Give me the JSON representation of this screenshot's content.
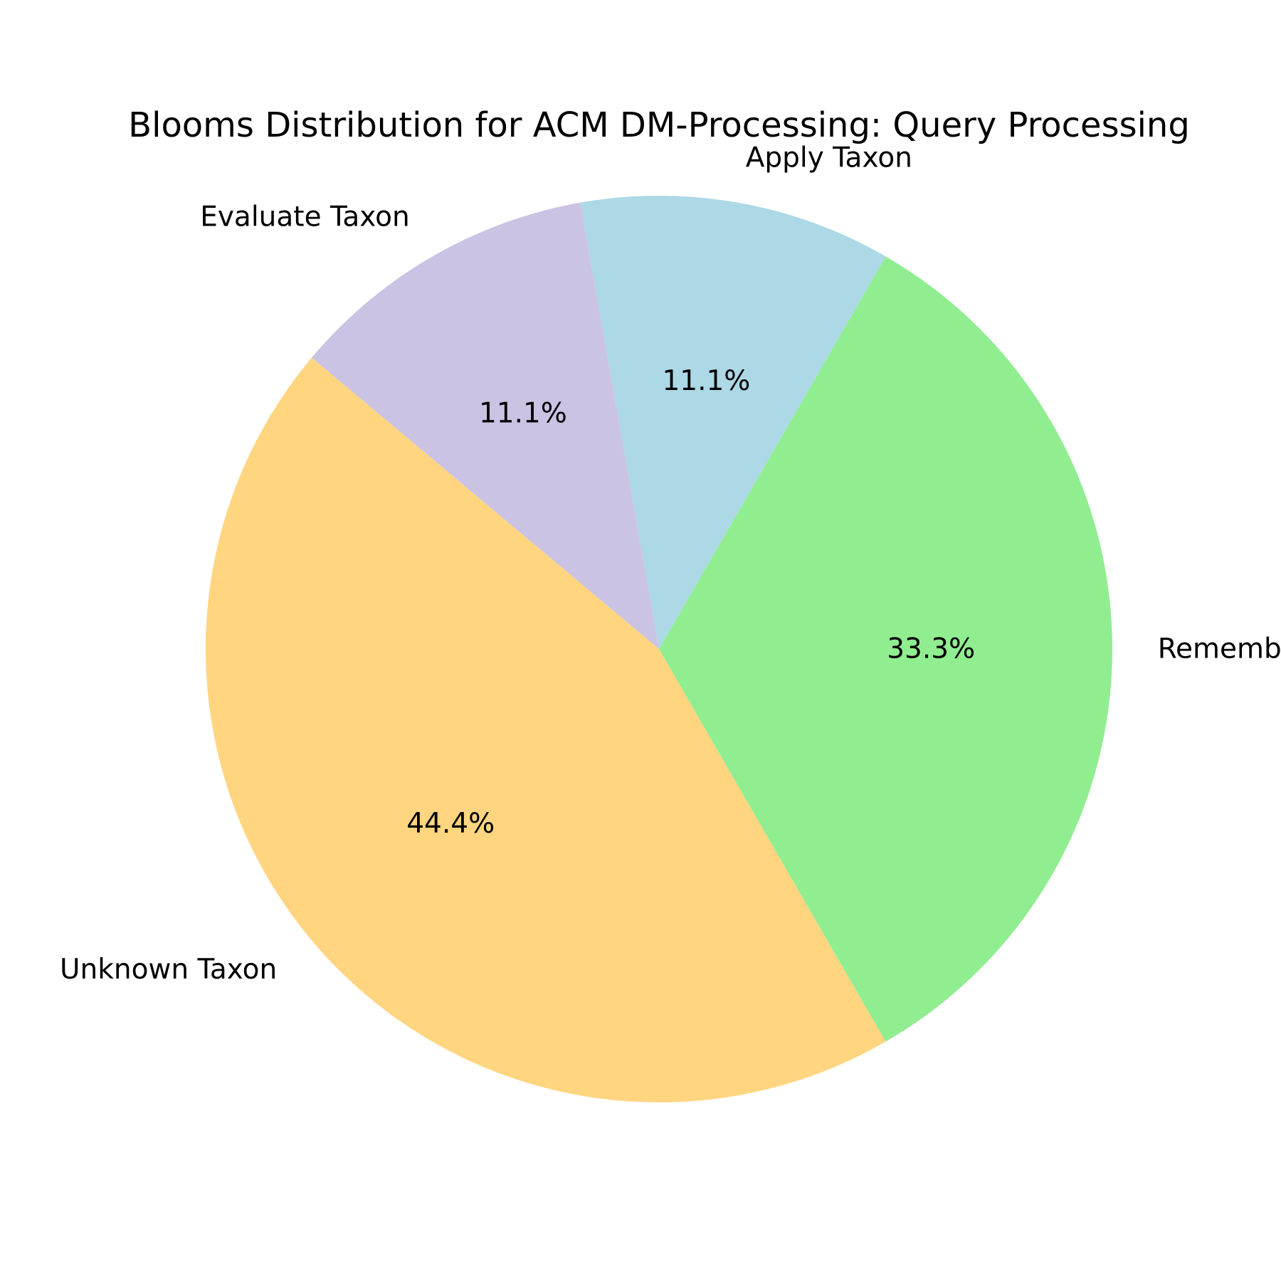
{
  "chart_data": {
    "type": "pie",
    "title": "Blooms Distribution for ACM DM-Processing: Query Processing",
    "start_angle_deg": 140,
    "direction": "counterclockwise",
    "legend": "none",
    "slices": [
      {
        "label": "Unknown Taxon",
        "percent_label": "44.4%",
        "value": 44.4,
        "color": "#ffd580"
      },
      {
        "label": "Remember Taxon",
        "percent_label": "33.3%",
        "value": 33.3,
        "color": "#90ee90"
      },
      {
        "label": "Apply Taxon",
        "percent_label": "11.1%",
        "value": 11.1,
        "color": "#add8e6"
      },
      {
        "label": "Evaluate Taxon",
        "percent_label": "11.1%",
        "value": 11.1,
        "color": "#cbc3e3"
      }
    ]
  }
}
